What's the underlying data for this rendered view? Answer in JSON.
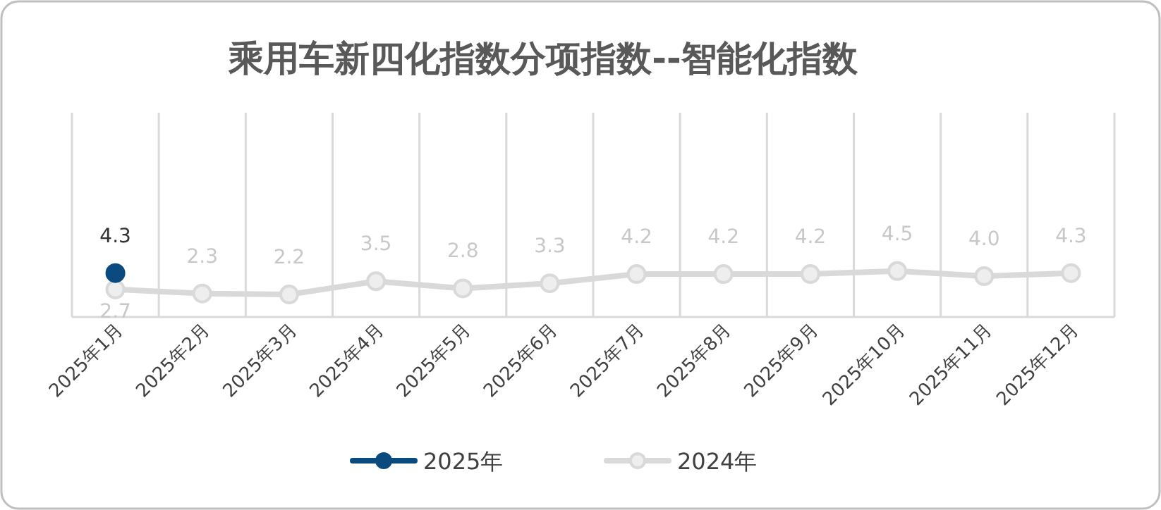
{
  "chart_data": {
    "type": "line",
    "title": "乘用车新四化指数分项指数--智能化指数",
    "categories": [
      "2025年1月",
      "2025年2月",
      "2025年3月",
      "2025年4月",
      "2025年5月",
      "2025年6月",
      "2025年7月",
      "2025年8月",
      "2025年9月",
      "2025年10月",
      "2025年11月",
      "2025年12月"
    ],
    "series": [
      {
        "name": "2025年",
        "color": "#0b4a7f",
        "values": [
          4.3,
          null,
          null,
          null,
          null,
          null,
          null,
          null,
          null,
          null,
          null,
          null
        ]
      },
      {
        "name": "2024年",
        "color": "#d9d9d9",
        "values": [
          2.7,
          2.3,
          2.2,
          3.5,
          2.8,
          3.3,
          4.2,
          4.2,
          4.2,
          4.5,
          4.0,
          4.3
        ],
        "value_labels": [
          "2.7",
          "2.3",
          "2.2",
          "3.5",
          "2.8",
          "3.3",
          "4.2",
          "4.2",
          "4.2",
          "4.5",
          "4.0",
          "4.3"
        ]
      }
    ],
    "ylim": [
      0,
      20
    ],
    "tick_labels": "x",
    "grid": "x",
    "legend": "bottom",
    "marker": "circle",
    "line_style": "solid",
    "data_labels": true
  }
}
